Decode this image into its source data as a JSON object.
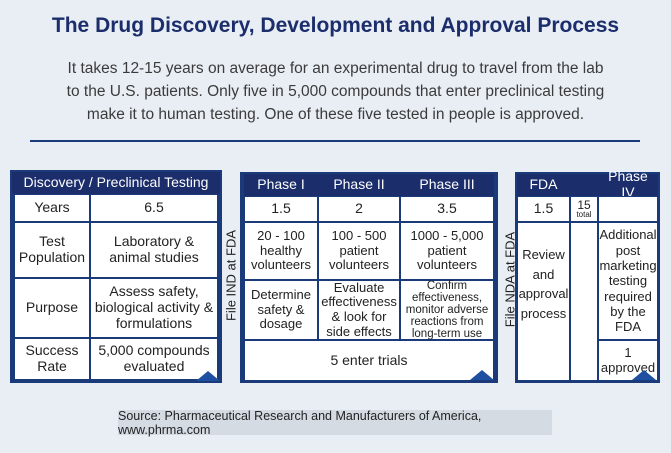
{
  "header": {
    "title": "The Drug Discovery, Development and Approval Process",
    "subtitle_lines": [
      "It takes 12-15 years on average for an experimental drug to travel from the lab",
      "to the U.S. patients. Only five in 5,000 compounds that enter preclinical testing",
      "make it to human testing. One of these five tested in people is approved."
    ]
  },
  "discovery": {
    "title": "Discovery / Preclinical Testing",
    "rows": [
      [
        "Years",
        "6.5"
      ],
      [
        "Test Population",
        "Laboratory & animal studies"
      ],
      [
        "Purpose",
        "Assess safety, biological activity & formulations"
      ],
      [
        "Success Rate",
        "5,000 compounds evaluated"
      ]
    ]
  },
  "ind_label": "File IND at FDA",
  "clinical": {
    "phases": [
      "Phase I",
      "Phase II",
      "Phase III"
    ],
    "years": [
      "1.5",
      "2",
      "3.5"
    ],
    "population": [
      "20 - 100 healthy volunteers",
      "100 - 500 patient volunteers",
      "1000 - 5,000 patient volunteers"
    ],
    "purpose": [
      "Determine safety & dosage",
      "Evaluate effectiveness & look for side effects",
      "Confirm effectiveness, monitor adverse reactions from long-term use"
    ],
    "result": "5 enter trials"
  },
  "nda_label": "File NDA at FDA",
  "approval": {
    "fda": "FDA",
    "phase4": "Phase IV",
    "years": "1.5",
    "total_years": "15",
    "total_label": "total",
    "review": "Review and approval process",
    "phase4_purpose": "Additional post marketing testing required by the FDA",
    "result": "1 approved"
  },
  "source": "Source: Pharmaceutical Research and Manufacturers of America, www.phrma.com"
}
